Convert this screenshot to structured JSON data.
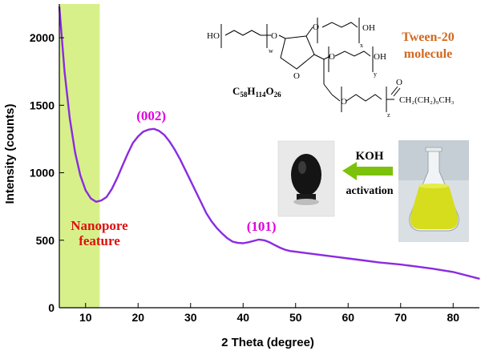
{
  "chart_data": {
    "type": "line",
    "xlabel": "2 Theta (degree)",
    "ylabel": "Intensity (counts)",
    "xlim": [
      5,
      85
    ],
    "ylim": [
      0,
      2250
    ],
    "x_ticks": [
      "10",
      "20",
      "30",
      "40",
      "50",
      "60",
      "70",
      "80"
    ],
    "y_ticks": [
      "0",
      "500",
      "1000",
      "1500",
      "2000"
    ],
    "grid": false,
    "series": [
      {
        "color": "#8a2be2",
        "x": [
          5,
          6,
          7,
          8,
          9,
          10,
          11,
          12,
          13,
          14,
          15,
          16,
          17,
          18,
          19,
          20,
          21,
          22,
          23,
          24,
          25,
          26,
          27,
          28,
          29,
          30,
          31,
          32,
          33,
          34,
          35,
          36,
          37,
          38,
          39,
          40,
          41,
          42,
          43,
          44,
          45,
          46,
          47,
          48,
          49,
          50,
          52,
          55,
          58,
          60,
          63,
          66,
          70,
          73,
          76,
          80,
          85
        ],
        "y": [
          2230,
          1750,
          1400,
          1150,
          980,
          870,
          810,
          785,
          795,
          820,
          880,
          960,
          1050,
          1140,
          1220,
          1270,
          1305,
          1320,
          1325,
          1310,
          1280,
          1230,
          1170,
          1100,
          1020,
          940,
          860,
          780,
          700,
          640,
          590,
          550,
          515,
          490,
          480,
          478,
          485,
          495,
          505,
          500,
          485,
          465,
          445,
          430,
          420,
          415,
          405,
          390,
          375,
          365,
          350,
          335,
          320,
          305,
          290,
          265,
          215
        ]
      }
    ],
    "highlight_region": {
      "x_from": 5,
      "x_to": 12.7,
      "color": "#d7f08a"
    },
    "annotations": {
      "peak_002": {
        "text": "(002)",
        "x": 22.5,
        "y": 1390
      },
      "peak_101": {
        "text": "(101)",
        "x": 43.5,
        "y": 570
      },
      "nanopore_line1": "Nanopore",
      "nanopore_line2": "feature",
      "tween_line1": "Tween-20",
      "tween_line2": "molecule",
      "formula_base": "C",
      "formula_n1": "58",
      "formula_h": "H",
      "formula_n2": "114",
      "formula_o": "O",
      "formula_n3": "26",
      "koh": "KOH",
      "activation": "activation",
      "chain_label": "CH₂(CH₂)₉CH₃",
      "ho_label": "HO",
      "oh_label_x": "OH",
      "oh_label_y": "OH",
      "sub_w": "w",
      "sub_x": "x",
      "sub_y": "y",
      "sub_z": "z",
      "o_label": "O"
    }
  },
  "colors": {
    "line": "#8a2be2",
    "highlight": "#d7f08a",
    "peak_label": "#e000e0",
    "nanopore_label": "#e01010",
    "tween_label": "#d2691e",
    "arrow": "#7cc20a"
  }
}
